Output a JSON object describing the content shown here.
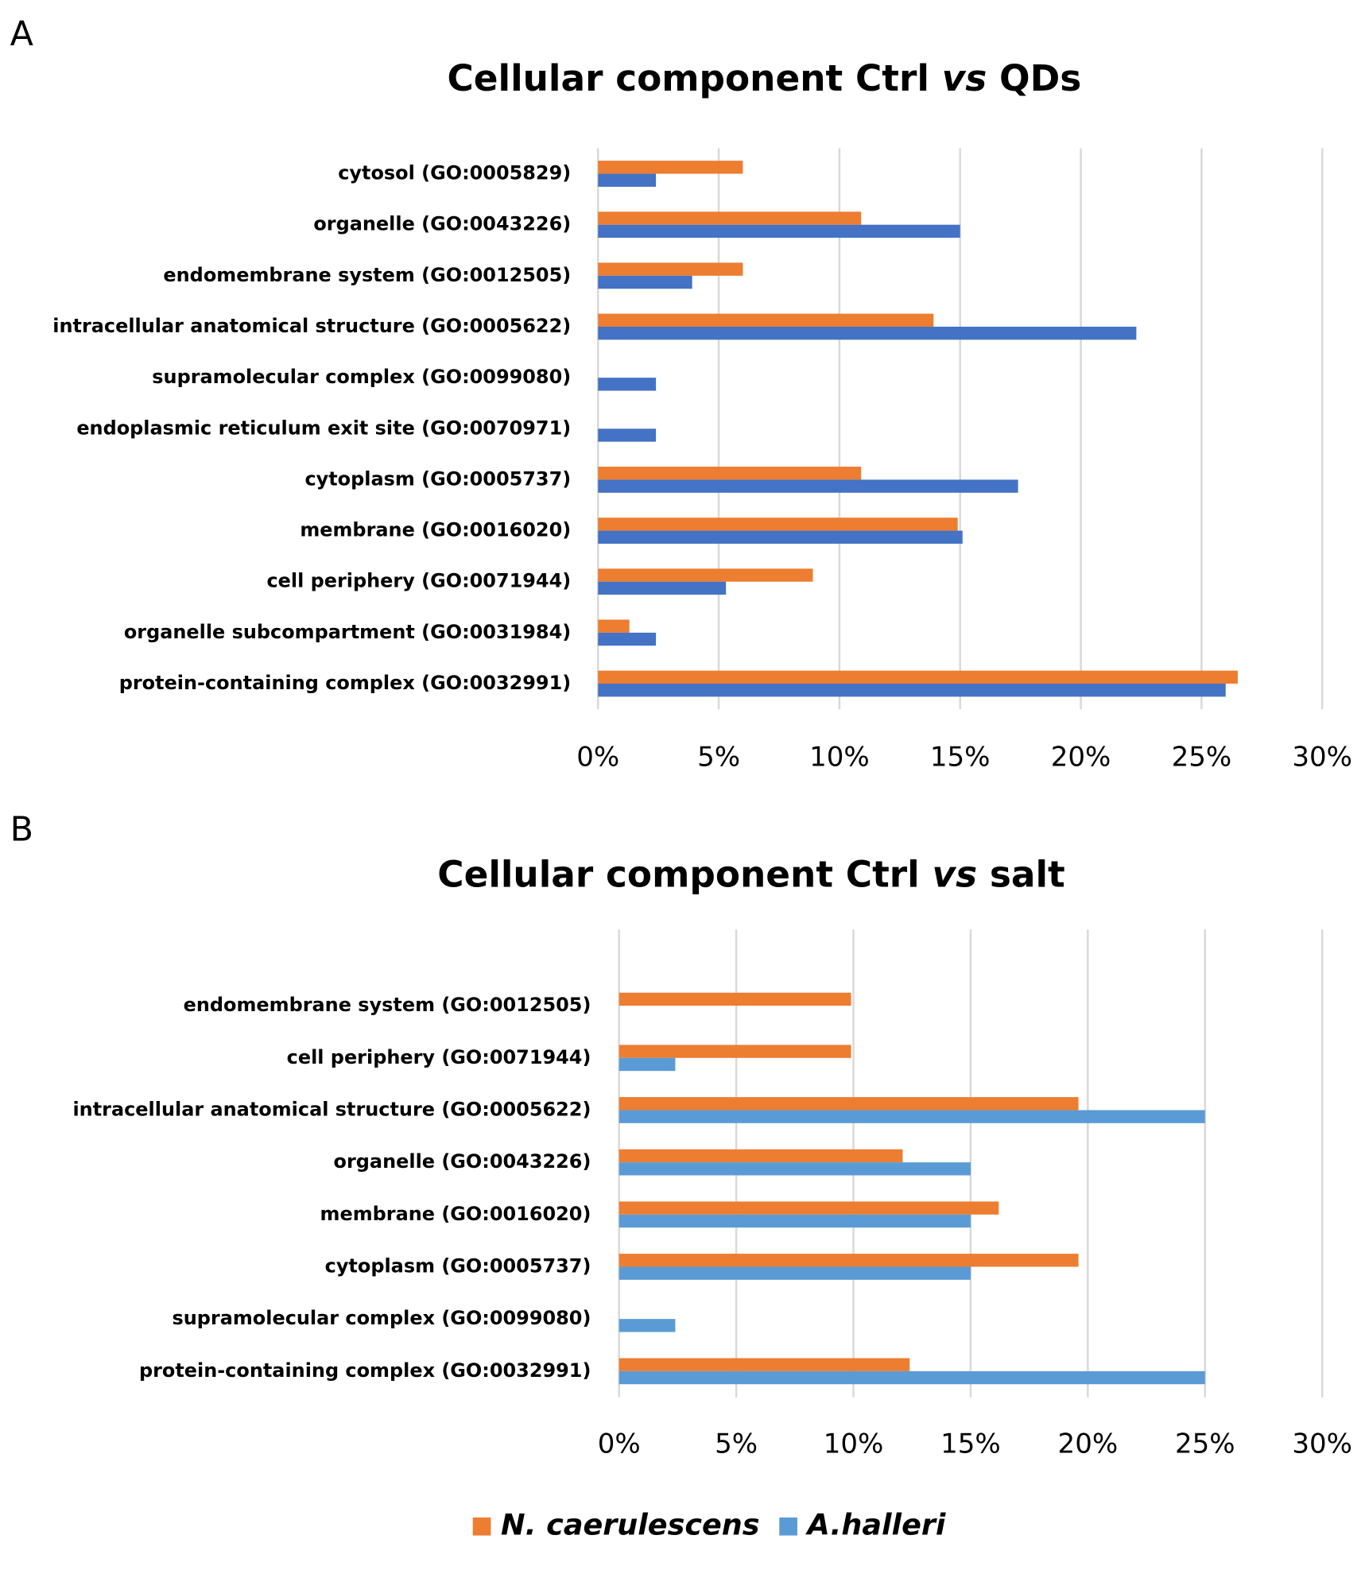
{
  "panel_labels": [
    "A",
    "B"
  ],
  "chart_data": [
    {
      "type": "bar",
      "orientation": "horizontal",
      "title": [
        "Cellular component Ctrl ",
        "vs",
        " QDs"
      ],
      "categories": [
        "cytosol (GO:0005829)",
        "organelle (GO:0043226)",
        "endomembrane system (GO:0012505)",
        "intracellular anatomical structure (GO:0005622)",
        "supramolecular complex (GO:0099080)",
        "endoplasmic reticulum exit site (GO:0070971)",
        "cytoplasm (GO:0005737)",
        "membrane (GO:0016020)",
        "cell periphery (GO:0071944)",
        "organelle subcompartment (GO:0031984)",
        "protein-containing complex (GO:0032991)"
      ],
      "series": [
        {
          "name": "N. caerulescens",
          "color": "#ed7d31",
          "values": [
            6.0,
            10.9,
            6.0,
            13.9,
            null,
            null,
            10.9,
            14.9,
            8.9,
            1.3,
            26.5
          ]
        },
        {
          "name": "A.halleri",
          "color": "#4472c4",
          "values": [
            2.4,
            15.0,
            3.9,
            22.3,
            2.4,
            2.4,
            17.4,
            15.1,
            5.3,
            2.4,
            26.0
          ]
        }
      ],
      "xlim": [
        0,
        30
      ],
      "xticks": [
        {
          "value": 0,
          "label": "0%"
        },
        {
          "value": 5,
          "label": "5%"
        },
        {
          "value": 10,
          "label": "10%"
        },
        {
          "value": 15,
          "label": "15%"
        },
        {
          "value": 20,
          "label": "20%"
        },
        {
          "value": 25,
          "label": "25%"
        },
        {
          "value": 30,
          "label": "30%"
        }
      ],
      "grid": true
    },
    {
      "type": "bar",
      "orientation": "horizontal",
      "title": [
        "Cellular component Ctrl ",
        "vs",
        " salt"
      ],
      "categories": [
        "endomembrane system (GO:0012505)",
        "cell periphery (GO:0071944)",
        "intracellular anatomical structure (GO:0005622)",
        "organelle (GO:0043226)",
        "membrane (GO:0016020)",
        "cytoplasm (GO:0005737)",
        "supramolecular complex (GO:0099080)",
        "protein-containing complex (GO:0032991)"
      ],
      "series": [
        {
          "name": "N. caerulescens",
          "color": "#ed7d31",
          "values": [
            9.9,
            9.9,
            19.6,
            12.1,
            16.2,
            19.6,
            null,
            12.4
          ]
        },
        {
          "name": "A.halleri",
          "color": "#5b9bd5",
          "values": [
            null,
            2.4,
            25.0,
            15.0,
            15.0,
            15.0,
            2.4,
            25.0
          ]
        }
      ],
      "xlim": [
        0,
        30
      ],
      "xticks": [
        {
          "value": 0,
          "label": "0%"
        },
        {
          "value": 5,
          "label": "5%"
        },
        {
          "value": 10,
          "label": "10%"
        },
        {
          "value": 15,
          "label": "15%"
        },
        {
          "value": 20,
          "label": "20%"
        },
        {
          "value": 25,
          "label": "25%"
        },
        {
          "value": 30,
          "label": "30%"
        }
      ],
      "grid": true,
      "legend": "bottom"
    }
  ]
}
